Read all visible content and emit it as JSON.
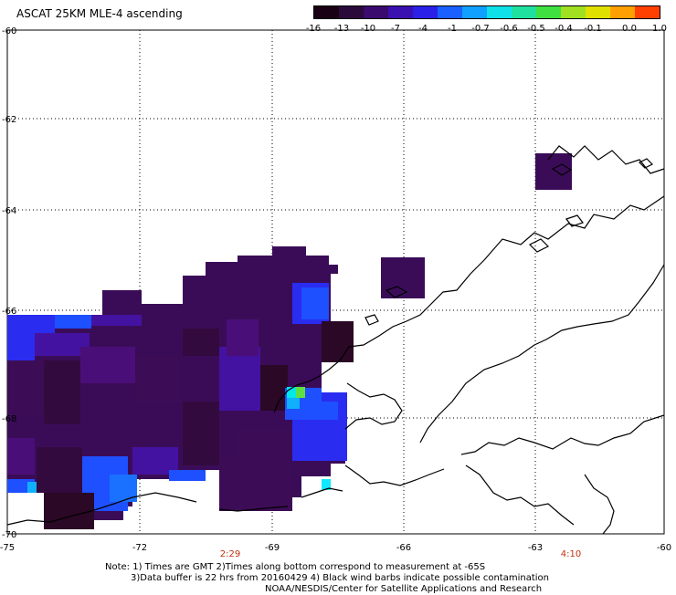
{
  "title": "ASCAT 25KM MLE-4 ascending",
  "colorbar": {
    "labels": [
      "-16",
      "-13",
      "-10",
      "-7",
      "-4",
      "-1",
      "-0.7",
      "-0.6",
      "-0.5",
      "-0.4",
      "-0.1",
      "0.0",
      "1.0"
    ],
    "colors": [
      "#1a0014",
      "#2a0a3a",
      "#3a0a6e",
      "#3a10b0",
      "#2a20e8",
      "#1a60ff",
      "#10a0ff",
      "#10e0e8",
      "#20e0a0",
      "#40e040",
      "#a0e020",
      "#e0e000",
      "#ffa000",
      "#ff4000"
    ]
  },
  "axes": {
    "lon_ticks": [
      "-75",
      "-72",
      "-69",
      "-66",
      "-63",
      "-60"
    ],
    "lat_ticks": [
      "-60",
      "-62",
      "-64",
      "-66",
      "-68",
      "-70"
    ]
  },
  "times": [
    "2:29",
    "4:10"
  ],
  "notes": {
    "line1": "Note: 1) Times are GMT 2)Times along bottom correspond to measurement at -65S",
    "line2": "3)Data buffer is 22 hrs from 20160429 4) Black wind barbs indicate possible contamination",
    "line3": "NOAA/NESDIS/Center for Satellite Applications and Research"
  }
}
